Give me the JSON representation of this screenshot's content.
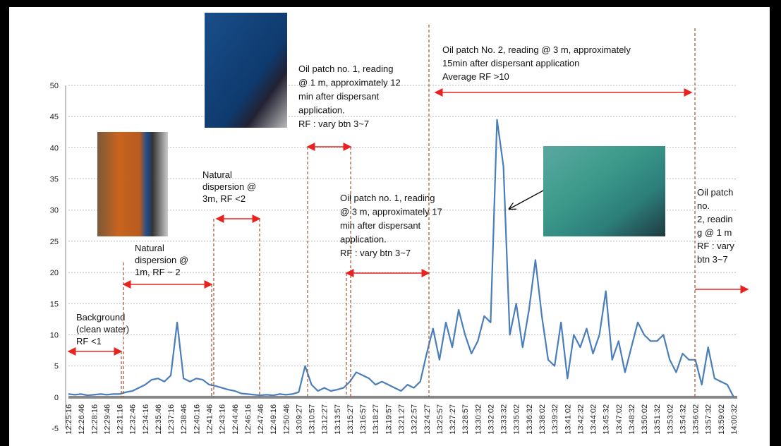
{
  "chart_data": {
    "type": "line",
    "categories": [
      "12:25:16",
      null,
      "12:26:46",
      null,
      "12:28:16",
      null,
      "12:29:46",
      null,
      "12:31:16",
      null,
      "12:32:46",
      null,
      "12:34:16",
      null,
      "12:35:46",
      null,
      "12:37:16",
      null,
      "12:38:46",
      null,
      "12:40:16",
      null,
      "12:41:46",
      null,
      "12:43:16",
      null,
      "12:44:46",
      null,
      "12:46:16",
      null,
      "12:47:46",
      null,
      "12:49:16",
      null,
      "12:50:46",
      null,
      "13:09:27",
      null,
      "13:10:57",
      null,
      "13:12:27",
      null,
      "13:13:57",
      null,
      "13:15:27",
      null,
      "13:16:57",
      null,
      "13:18:27",
      null,
      "13:19:57",
      null,
      "13:21:27",
      null,
      "13:22:57",
      null,
      "13:24:27",
      null,
      "13:25:57",
      null,
      "13:27:27",
      null,
      "13:28:57",
      null,
      "13:30:32",
      null,
      "13:32:02",
      null,
      "13:33:32",
      null,
      "13:35:02",
      null,
      "13:36:32",
      null,
      "13:38:02",
      null,
      "13:39:32",
      null,
      "13:41:02",
      null,
      "13:42:32",
      null,
      "13:44:02",
      null,
      "13:45:32",
      null,
      "13:47:02",
      null,
      "13:48:32",
      null,
      "13:50:02",
      null,
      "13:51:32",
      null,
      "13:53:02",
      null,
      "13:54:32",
      null,
      "13:56:02",
      null,
      "13:57:32",
      null,
      "13:59:02",
      null,
      "14:00:32"
    ],
    "series": [
      {
        "color": "#4a7ebb",
        "values": [
          0.5,
          0.4,
          0.5,
          0.3,
          0.4,
          0.5,
          0.4,
          0.5,
          0.5,
          0.8,
          1.0,
          1.5,
          2.0,
          2.8,
          3.0,
          2.5,
          3.5,
          12,
          3.0,
          2.5,
          3.0,
          2.8,
          2.0,
          1.8,
          1.5,
          1.2,
          1.0,
          0.6,
          0.5,
          0.4,
          0.3,
          0.4,
          0.3,
          0.5,
          0.4,
          0.5,
          0.8,
          5.0,
          2.0,
          1.0,
          1.5,
          1.0,
          1.2,
          1.5,
          2.5,
          4.0,
          3.5,
          3.0,
          2.0,
          2.5,
          2.0,
          1.5,
          1.0,
          2.0,
          1.5,
          2.5,
          7.0,
          11,
          6,
          12,
          8,
          14,
          10,
          7,
          9,
          13,
          12,
          44.5,
          37,
          10,
          15,
          8,
          14,
          22,
          13,
          6,
          5,
          12,
          3,
          10,
          8,
          11,
          7,
          10,
          17,
          6,
          9,
          4,
          8,
          12,
          10,
          9,
          9,
          10,
          6,
          4,
          7,
          6,
          6,
          2,
          8,
          3,
          2.5,
          2,
          0
        ]
      }
    ],
    "ylim": [
      -5,
      50
    ],
    "yticks": [
      -5,
      0,
      5,
      10,
      15,
      20,
      25,
      30,
      35,
      40,
      45,
      50
    ],
    "grid": true,
    "annotations": [
      {
        "lines": [
          "Background",
          "(clean water)",
          "RF <1"
        ]
      },
      {
        "lines": [
          "Natural",
          "dispersion @",
          "1m,  RF ~ 2"
        ]
      },
      {
        "lines": [
          "Natural",
          "dispersion @",
          "3m,  RF <2"
        ]
      },
      {
        "lines": [
          "Oil patch no. 1, reading",
          "@ 1 m, approximately 12",
          "min after dispersant",
          "application.",
          "RF : vary btn 3~7"
        ]
      },
      {
        "lines": [
          "Oil patch no. 1, reading",
          "@ 3 m, approximately 17",
          "min after dispersant",
          "application.",
          "RF : vary btn 3~7"
        ]
      },
      {
        "lines": [
          "Oil patch No. 2, reading @ 3 m, approximately",
          "15min after dispersant application",
          "Average RF >10"
        ]
      },
      {
        "lines": [
          "Oil patch",
          "no.",
          "2, readin",
          "g @ 1 m",
          "RF : vary",
          "btn 3~7"
        ]
      }
    ]
  }
}
